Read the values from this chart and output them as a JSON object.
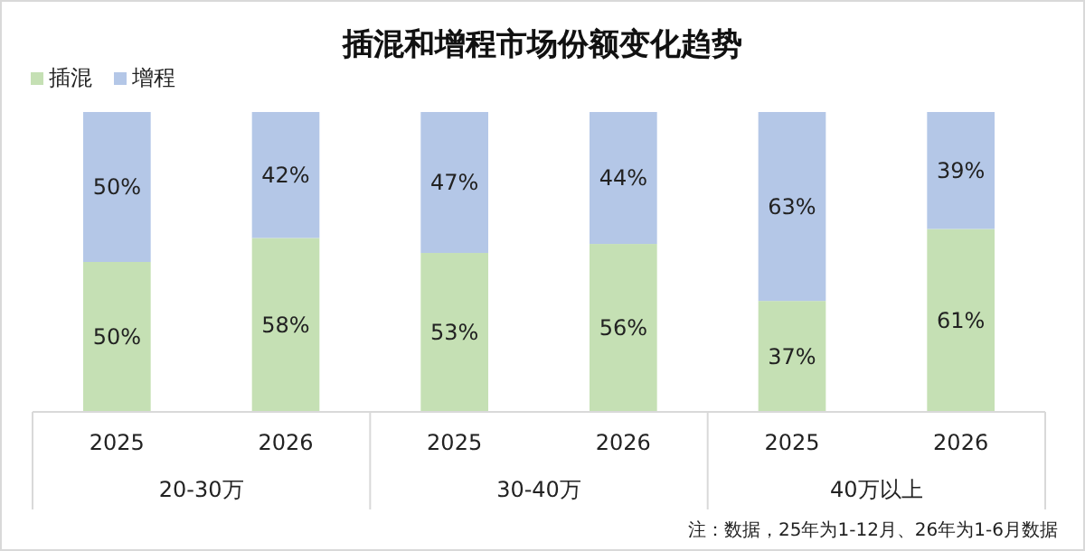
{
  "chart_data": {
    "type": "bar",
    "title": "插混和增程市场份额变化趋势",
    "stacked": true,
    "legend": "top left",
    "categories": [
      "2025",
      "2026",
      "2025",
      "2026",
      "2025",
      "2026"
    ],
    "series": [
      {
        "name": "插混",
        "color": "#c5e0b4",
        "values": [
          50,
          58,
          53,
          56,
          37,
          61
        ],
        "value_labels": [
          "50%",
          "58%",
          "53%",
          "56%",
          "37%",
          "61%"
        ]
      },
      {
        "name": "增程",
        "color": "#b4c7e7",
        "values": [
          50,
          42,
          47,
          44,
          63,
          39
        ],
        "value_labels": [
          "50%",
          "42%",
          "47%",
          "44%",
          "63%",
          "39%"
        ]
      }
    ],
    "annotations": [
      "20-30万",
      "30-40万",
      "40万以上",
      "注：数据，25年为1-12月、26年为1-6月数据"
    ]
  }
}
